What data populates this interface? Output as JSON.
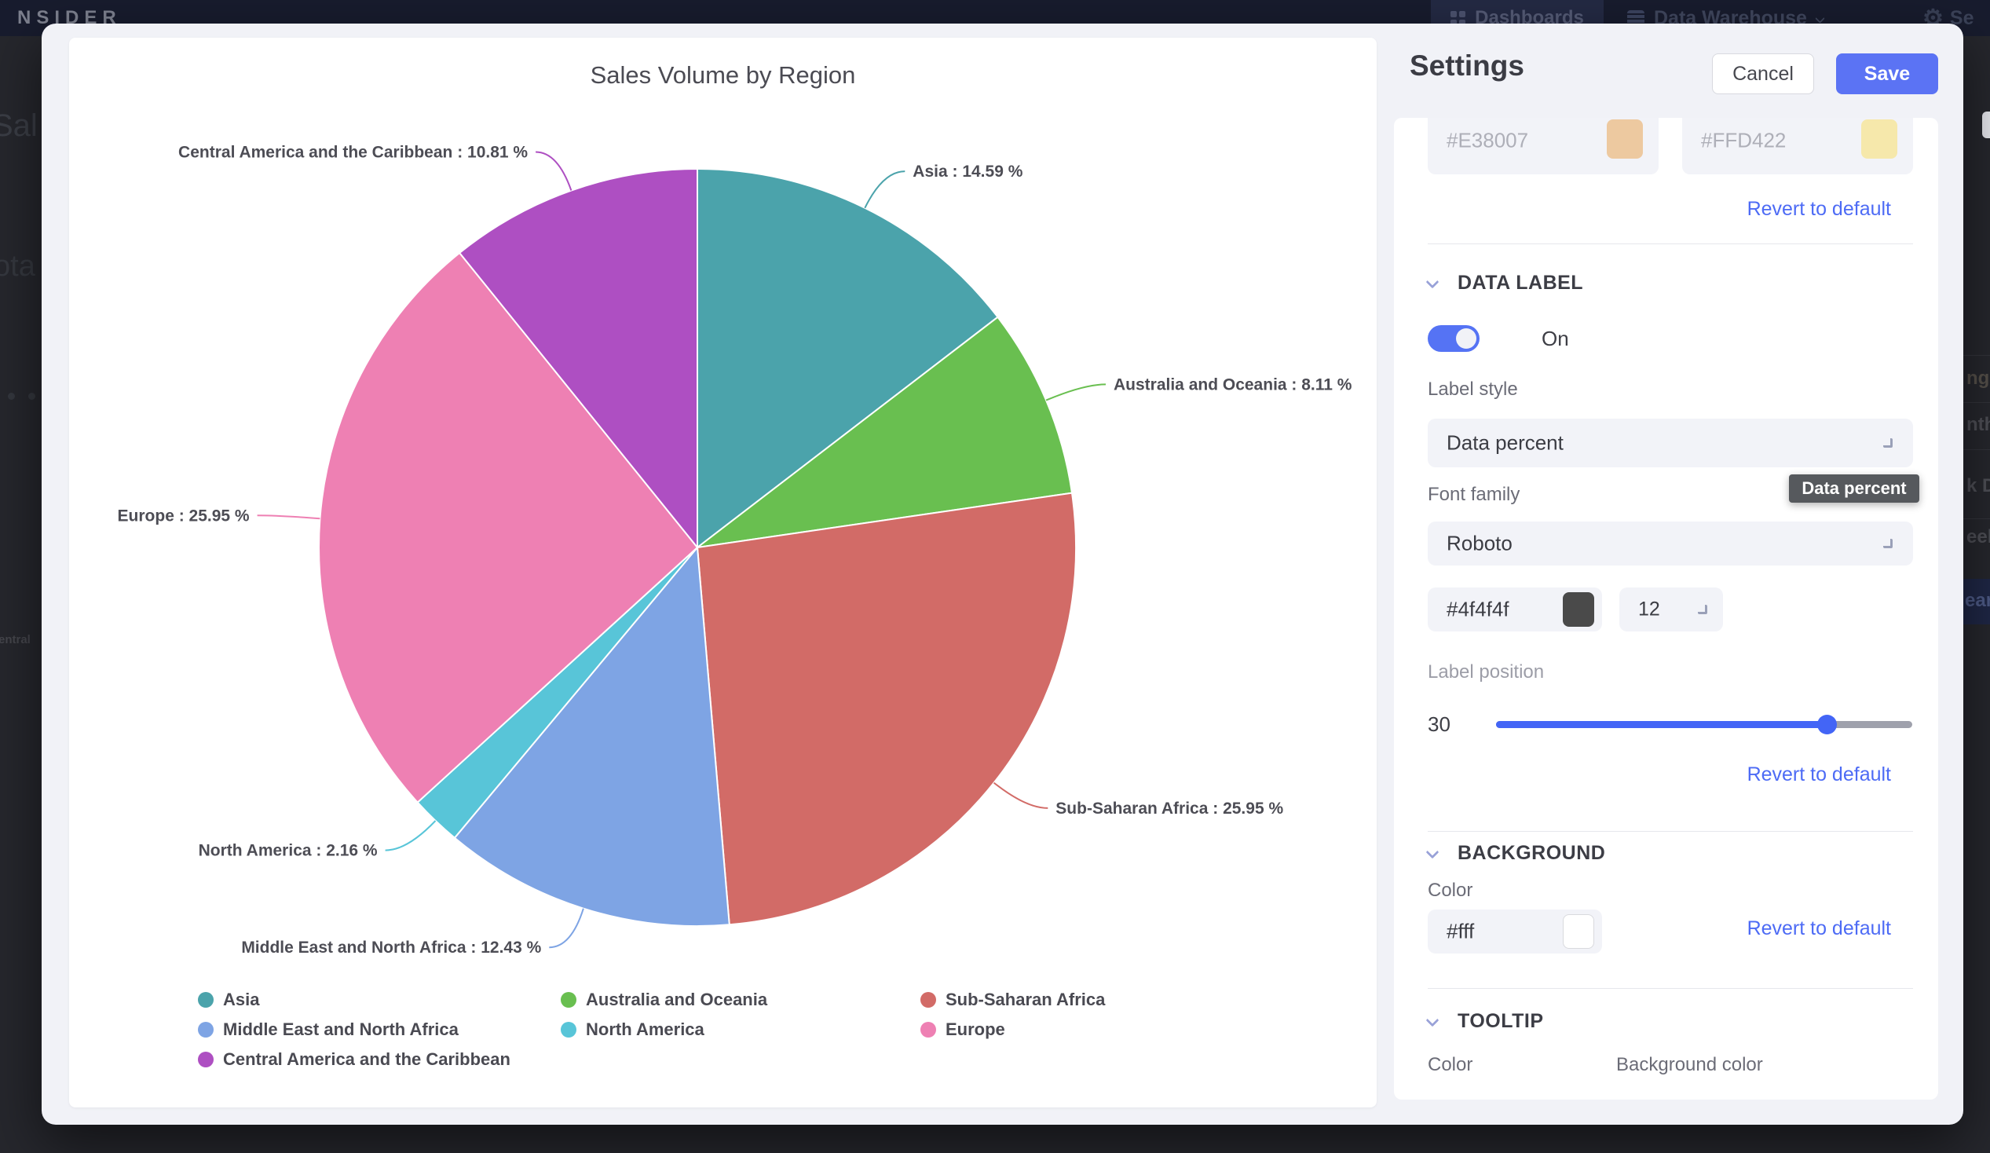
{
  "background": {
    "brand": "NSIDER",
    "nav": {
      "dashboards": "Dashboards",
      "data_warehouse": "Data Warehouse",
      "settings_partial": "Se"
    },
    "left_fragments": {
      "f1": "Sal",
      "f2": "ota",
      "f3": "entral"
    },
    "right_fragments": [
      "nge",
      "nth",
      "k D",
      "eek",
      "ear"
    ]
  },
  "modal": {
    "chart": {
      "title": "Sales Volume by Region",
      "chart_data": {
        "type": "pie",
        "title": "Sales Volume by Region",
        "unit": "%",
        "label_format": "{name} : {percent} %",
        "legend_position": "bottom",
        "start_angle_deg": 0,
        "direction": "clockwise",
        "slices": [
          {
            "name": "Asia",
            "percent": 14.59,
            "color": "#4ba3ab"
          },
          {
            "name": "Australia and Oceania",
            "percent": 8.11,
            "color": "#69bf50"
          },
          {
            "name": "Sub-Saharan Africa",
            "percent": 25.95,
            "color": "#d26b67"
          },
          {
            "name": "Middle East and North Africa",
            "percent": 12.43,
            "color": "#7ea4e4"
          },
          {
            "name": "North America",
            "percent": 2.16,
            "color": "#58c5d8"
          },
          {
            "name": "Europe",
            "percent": 25.95,
            "color": "#ee80b3"
          },
          {
            "name": "Central America and the Caribbean",
            "percent": 10.81,
            "color": "#ae4fc2"
          }
        ]
      }
    },
    "settings": {
      "title": "Settings",
      "cancel_label": "Cancel",
      "save_label": "Save",
      "revert_label": "Revert to default",
      "series_colors": {
        "color1_value": "#E38007",
        "color2_value": "#FFD422",
        "swatch1": "#edc9a0",
        "swatch2": "#f6e8ab"
      },
      "data_label_section": {
        "title": "DATA LABEL",
        "toggle_state": "On",
        "label_style_label": "Label style",
        "label_style_value": "Data percent",
        "font_family_label": "Font family",
        "font_family_value": "Roboto",
        "tooltip_text": "Data percent",
        "font_color_value": "#4f4f4f",
        "font_color_swatch": "#4a4a4a",
        "font_size_value": "12",
        "label_position_label": "Label position",
        "label_position_value": "30"
      },
      "background_section": {
        "title": "BACKGROUND",
        "color_label": "Color",
        "color_value": "#fff"
      },
      "tooltip_section": {
        "title": "TOOLTIP",
        "color_label": "Color",
        "bg_color_label": "Background color"
      }
    }
  }
}
